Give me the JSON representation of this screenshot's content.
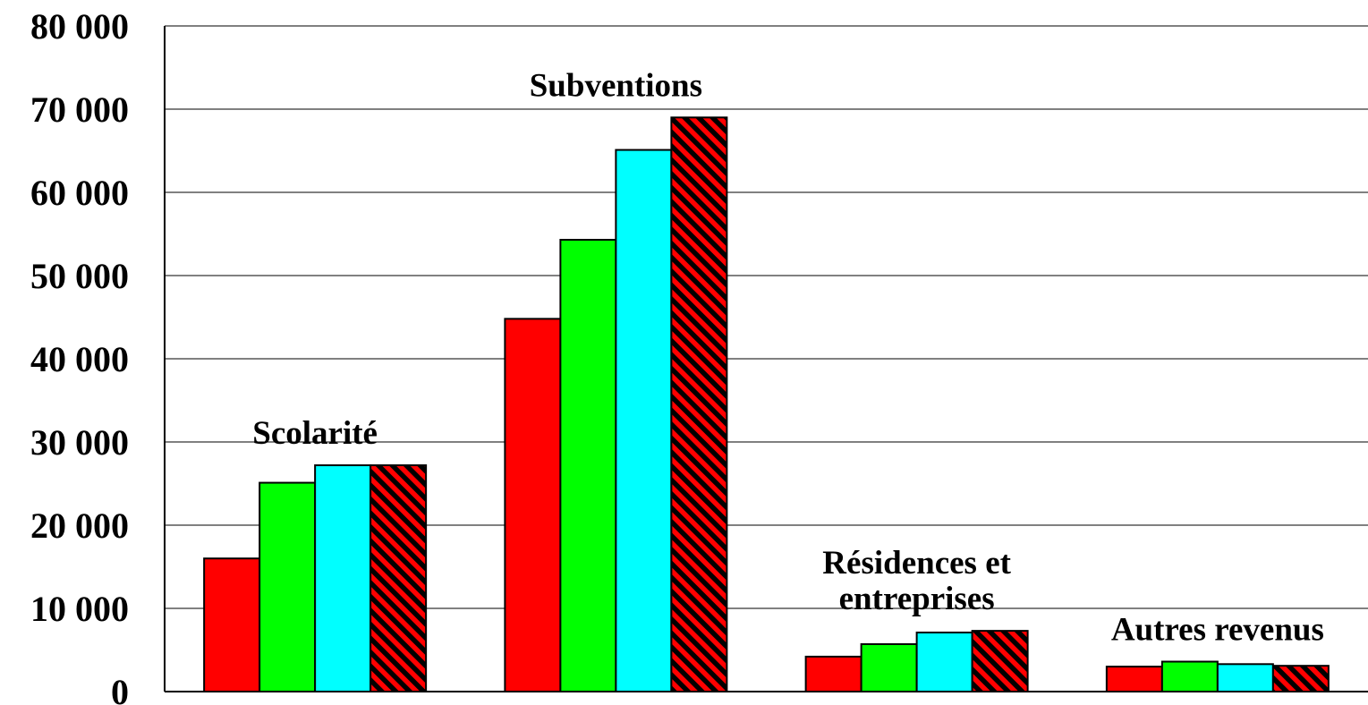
{
  "chart_data": {
    "type": "bar",
    "categories": [
      [
        "Scolarité"
      ],
      [
        "Subventions"
      ],
      [
        "Résidences et",
        "entreprises"
      ],
      [
        "Autres revenus"
      ]
    ],
    "series": [
      {
        "values": [
          16000,
          44800,
          4200,
          3000
        ],
        "color": "#ff0000",
        "pattern": "solid"
      },
      {
        "values": [
          25100,
          54300,
          5700,
          3600
        ],
        "color": "#00ff00",
        "pattern": "solid"
      },
      {
        "values": [
          27200,
          65100,
          7100,
          3300
        ],
        "color": "#00ffff",
        "pattern": "solid"
      },
      {
        "values": [
          27200,
          69000,
          7300,
          3100
        ],
        "color": "#ff0000",
        "pattern": "diagonal-hatch-black"
      }
    ],
    "y_ticks": [
      "0",
      "10 000",
      "20 000",
      "30 000",
      "40 000",
      "50 000",
      "60 000",
      "70 000",
      "80 000"
    ],
    "ylim": [
      0,
      80000
    ],
    "grid": true,
    "legend": "none"
  }
}
